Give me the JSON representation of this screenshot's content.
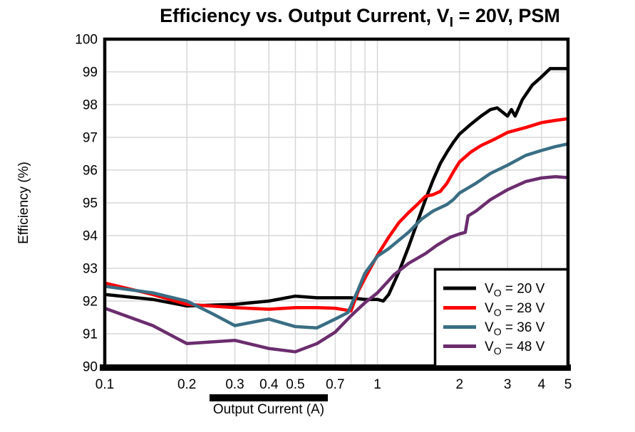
{
  "title": {
    "pre": "Efficiency vs. Output Current, V",
    "sub": "I",
    "post": " = 20V, PSM"
  },
  "chart_data": {
    "type": "line",
    "title": "Efficiency vs. Output Current, VI = 20V, PSM",
    "xlabel": "Output Current (A)",
    "ylabel": "Efficiency (%)",
    "x_scale": "log",
    "x_range": [
      0.1,
      5
    ],
    "y_range": [
      90,
      100
    ],
    "grid": {
      "color": "#d9d9d9",
      "x_lines": [
        0.2,
        0.3,
        0.4,
        0.5,
        0.6,
        0.7,
        0.8,
        0.9,
        1,
        2,
        3,
        4,
        5
      ],
      "y_lines": [
        91,
        92,
        93,
        94,
        95,
        96,
        97,
        98,
        99
      ]
    },
    "x_ticks": {
      "values": [
        0.1,
        0.2,
        0.3,
        0.4,
        0.5,
        0.7,
        1,
        2,
        3,
        4,
        5
      ],
      "labels": [
        "0.1",
        "0.2",
        "0.3",
        "0.4",
        "0.5",
        "0.7",
        "1",
        "2",
        "3",
        "4",
        "5"
      ]
    },
    "y_ticks": {
      "values": [
        90,
        91,
        92,
        93,
        94,
        95,
        96,
        97,
        98,
        99,
        100
      ],
      "labels": [
        "90",
        "91",
        "92",
        "93",
        "94",
        "95",
        "96",
        "97",
        "98",
        "99",
        "100"
      ]
    },
    "legend": {
      "position": "bottom-right"
    },
    "series": [
      {
        "name": "VO = 20 V",
        "label": {
          "pre": "V",
          "sub": "O",
          "post": " = 20 V"
        },
        "color": "#000000",
        "points": [
          [
            0.1,
            92.2
          ],
          [
            0.15,
            92.05
          ],
          [
            0.2,
            91.85
          ],
          [
            0.3,
            91.9
          ],
          [
            0.4,
            92.0
          ],
          [
            0.5,
            92.15
          ],
          [
            0.6,
            92.1
          ],
          [
            0.7,
            92.1
          ],
          [
            0.8,
            92.1
          ],
          [
            0.9,
            92.05
          ],
          [
            1.0,
            92.05
          ],
          [
            1.05,
            92.0
          ],
          [
            1.1,
            92.2
          ],
          [
            1.2,
            92.9
          ],
          [
            1.3,
            93.65
          ],
          [
            1.4,
            94.4
          ],
          [
            1.5,
            95.1
          ],
          [
            1.6,
            95.7
          ],
          [
            1.7,
            96.2
          ],
          [
            1.8,
            96.55
          ],
          [
            1.9,
            96.85
          ],
          [
            2.0,
            97.1
          ],
          [
            2.2,
            97.4
          ],
          [
            2.4,
            97.65
          ],
          [
            2.6,
            97.85
          ],
          [
            2.75,
            97.9
          ],
          [
            3.0,
            97.65
          ],
          [
            3.1,
            97.85
          ],
          [
            3.2,
            97.65
          ],
          [
            3.4,
            98.15
          ],
          [
            3.7,
            98.6
          ],
          [
            4.0,
            98.85
          ],
          [
            4.3,
            99.1
          ],
          [
            4.7,
            99.1
          ],
          [
            5.0,
            99.1
          ]
        ]
      },
      {
        "name": "VO = 28 V",
        "label": {
          "pre": "V",
          "sub": "O",
          "post": " = 28 V"
        },
        "color": "#ff0000",
        "points": [
          [
            0.1,
            92.55
          ],
          [
            0.15,
            92.2
          ],
          [
            0.2,
            91.9
          ],
          [
            0.3,
            91.8
          ],
          [
            0.4,
            91.75
          ],
          [
            0.5,
            91.8
          ],
          [
            0.6,
            91.8
          ],
          [
            0.7,
            91.78
          ],
          [
            0.8,
            91.7
          ],
          [
            0.85,
            92.3
          ],
          [
            0.9,
            92.7
          ],
          [
            1.0,
            93.4
          ],
          [
            1.1,
            93.95
          ],
          [
            1.2,
            94.4
          ],
          [
            1.3,
            94.7
          ],
          [
            1.4,
            94.95
          ],
          [
            1.5,
            95.2
          ],
          [
            1.6,
            95.25
          ],
          [
            1.7,
            95.35
          ],
          [
            1.8,
            95.6
          ],
          [
            1.9,
            95.95
          ],
          [
            2.0,
            96.25
          ],
          [
            2.2,
            96.55
          ],
          [
            2.4,
            96.75
          ],
          [
            2.7,
            96.95
          ],
          [
            3.0,
            97.15
          ],
          [
            3.5,
            97.3
          ],
          [
            4.0,
            97.45
          ],
          [
            4.5,
            97.52
          ],
          [
            5.0,
            97.57
          ]
        ]
      },
      {
        "name": "VO = 36 V",
        "label": {
          "pre": "V",
          "sub": "O",
          "post": " = 36 V"
        },
        "color": "#3a6e84",
        "points": [
          [
            0.1,
            92.45
          ],
          [
            0.15,
            92.25
          ],
          [
            0.2,
            92.0
          ],
          [
            0.25,
            91.6
          ],
          [
            0.3,
            91.25
          ],
          [
            0.4,
            91.45
          ],
          [
            0.5,
            91.22
          ],
          [
            0.6,
            91.18
          ],
          [
            0.7,
            91.45
          ],
          [
            0.78,
            91.65
          ],
          [
            0.85,
            92.35
          ],
          [
            0.9,
            92.85
          ],
          [
            1.0,
            93.37
          ],
          [
            1.1,
            93.6
          ],
          [
            1.3,
            94.1
          ],
          [
            1.45,
            94.5
          ],
          [
            1.6,
            94.75
          ],
          [
            1.8,
            94.95
          ],
          [
            1.9,
            95.1
          ],
          [
            2.0,
            95.3
          ],
          [
            2.3,
            95.6
          ],
          [
            2.6,
            95.9
          ],
          [
            3.0,
            96.15
          ],
          [
            3.5,
            96.45
          ],
          [
            4.0,
            96.6
          ],
          [
            4.5,
            96.72
          ],
          [
            5.0,
            96.8
          ]
        ]
      },
      {
        "name": "VO = 48 V",
        "label": {
          "pre": "V",
          "sub": "O",
          "post": " = 48 V"
        },
        "color": "#6b2d6e",
        "points": [
          [
            0.1,
            91.78
          ],
          [
            0.15,
            91.25
          ],
          [
            0.2,
            90.7
          ],
          [
            0.3,
            90.8
          ],
          [
            0.4,
            90.55
          ],
          [
            0.5,
            90.45
          ],
          [
            0.6,
            90.7
          ],
          [
            0.7,
            91.05
          ],
          [
            0.8,
            91.55
          ],
          [
            0.9,
            91.95
          ],
          [
            1.0,
            92.25
          ],
          [
            1.15,
            92.8
          ],
          [
            1.3,
            93.15
          ],
          [
            1.5,
            93.45
          ],
          [
            1.65,
            93.7
          ],
          [
            1.85,
            93.95
          ],
          [
            2.0,
            94.05
          ],
          [
            2.1,
            94.1
          ],
          [
            2.15,
            94.6
          ],
          [
            2.3,
            94.75
          ],
          [
            2.6,
            95.1
          ],
          [
            3.0,
            95.4
          ],
          [
            3.5,
            95.65
          ],
          [
            4.0,
            95.76
          ],
          [
            4.5,
            95.8
          ],
          [
            5.0,
            95.77
          ]
        ]
      }
    ]
  }
}
